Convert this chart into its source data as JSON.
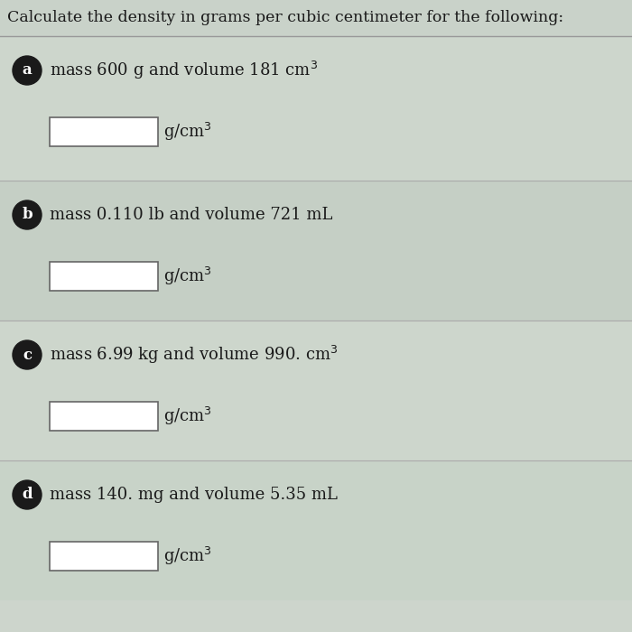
{
  "title": "Calculate the density in grams per cubic centimeter for the following:",
  "bg_color": "#cdd5cc",
  "title_bg": "#c9d2c9",
  "section_colors": [
    "#cdd6cc",
    "#c5cfc5",
    "#cdd6cc",
    "#c8d3c8",
    "#d2dbd2"
  ],
  "text_color": "#1a1a1a",
  "circle_color": "#1a1a1a",
  "items": [
    {
      "label": "a",
      "question": "mass 600 g and volume 181 cm$^3$",
      "unit": "g/cm$^3$"
    },
    {
      "label": "b",
      "question": "mass 0.110 lb and volume 721 mL",
      "unit": "g/cm$^3$"
    },
    {
      "label": "c",
      "question": "mass 6.99 kg and volume 990. cm$^3$",
      "unit": "g/cm$^3$"
    },
    {
      "label": "d",
      "question": "mass 140. mg and volume 5.35 mL",
      "unit": "g/cm$^3$"
    }
  ],
  "title_fontsize": 12.5,
  "question_fontsize": 13,
  "unit_fontsize": 13,
  "label_fontsize": 12
}
